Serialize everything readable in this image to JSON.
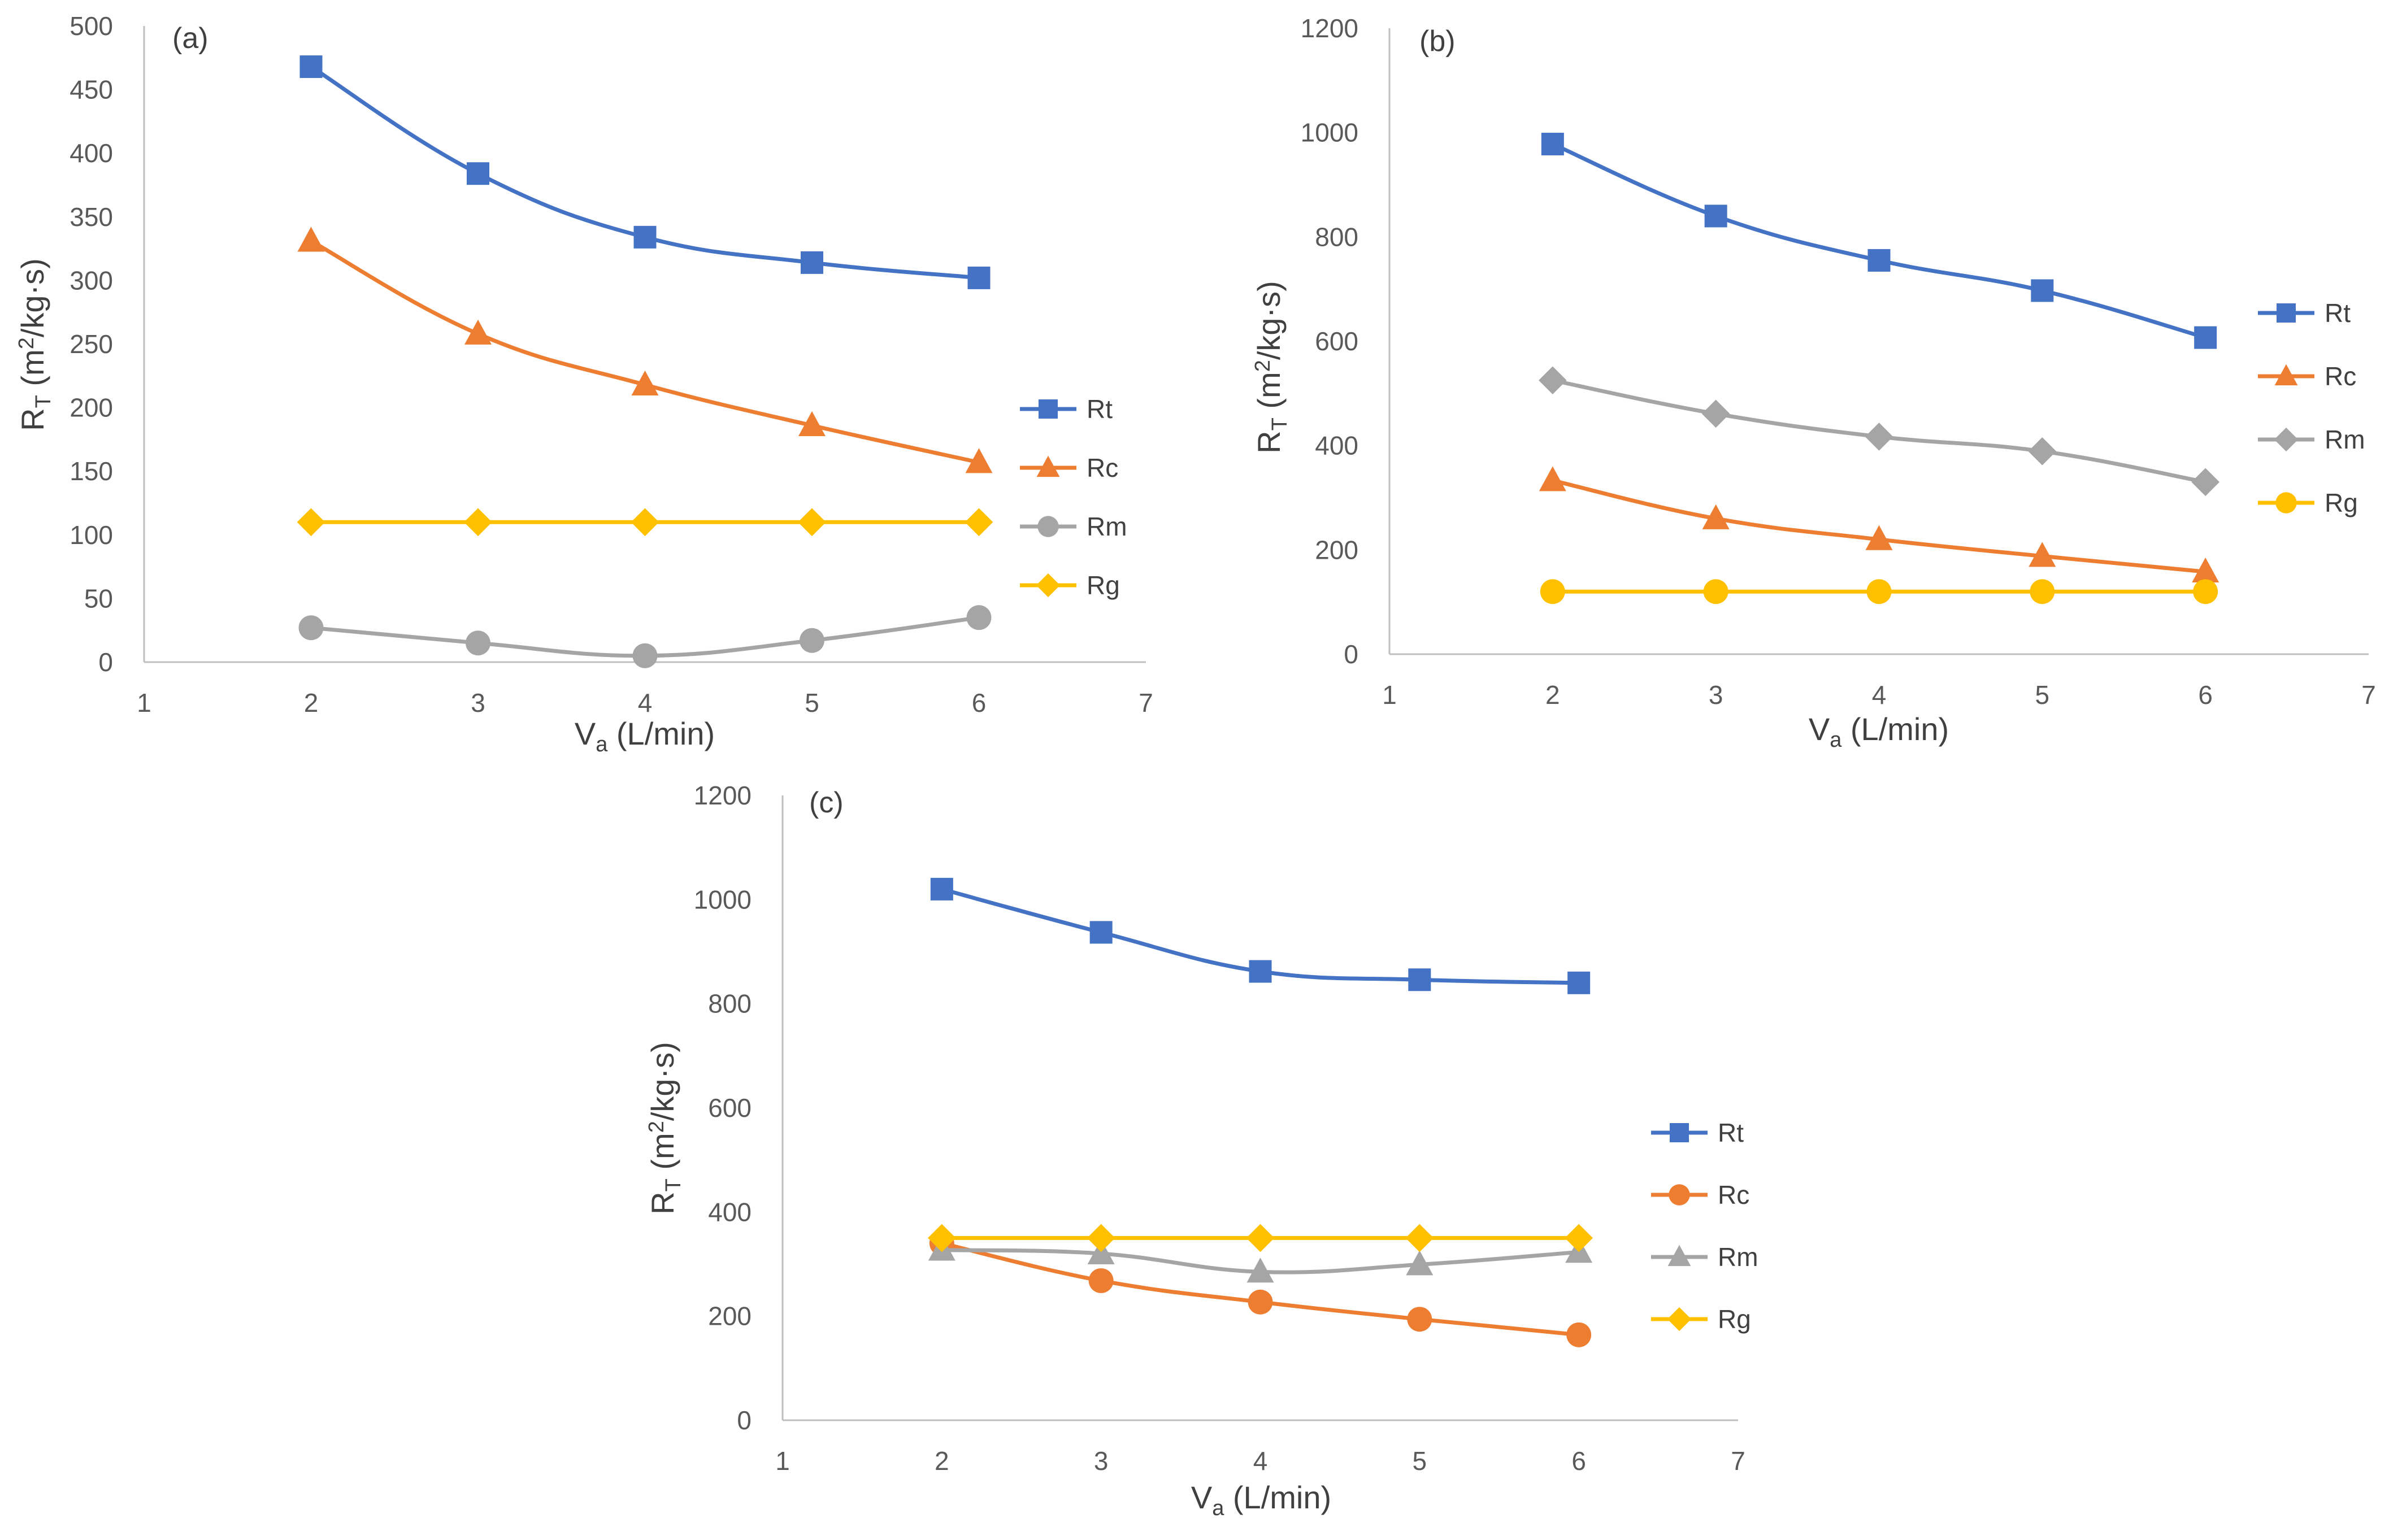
{
  "chart_data": [
    {
      "id": "a",
      "type": "line",
      "panel_label": "(a)",
      "title": "",
      "xlabel": "V",
      "xlabel_sub": "a",
      "xlabel_rest": " (L/min)",
      "ylabel": "R",
      "ylabel_sub": "T",
      "ylabel_rest": " (m",
      "ylabel_sup": "2",
      "ylabel_end": "/kg·s)",
      "xlim": [
        1,
        7
      ],
      "ylim": [
        0,
        500
      ],
      "xticks": [
        "1",
        "2",
        "3",
        "4",
        "5",
        "6",
        "7"
      ],
      "yticks": [
        "0",
        "50",
        "100",
        "150",
        "200",
        "250",
        "300",
        "350",
        "400",
        "450",
        "500"
      ],
      "grid": false,
      "legend_position": "right",
      "x": [
        2,
        3,
        4,
        5,
        6
      ],
      "series": [
        {
          "name": "Rt",
          "marker": "square",
          "color": "#4472c4",
          "values": [
            468,
            384,
            334,
            314,
            302
          ]
        },
        {
          "name": "Rc",
          "marker": "triangle",
          "color": "#ed7d31",
          "values": [
            331,
            258,
            218,
            186,
            157
          ]
        },
        {
          "name": "Rm",
          "marker": "circle",
          "color": "#a5a5a5",
          "values": [
            27,
            15,
            5,
            17,
            35
          ]
        },
        {
          "name": "Rg",
          "marker": "diamond",
          "color": "#ffc000",
          "values": [
            110,
            110,
            110,
            110,
            110
          ]
        }
      ]
    },
    {
      "id": "b",
      "type": "line",
      "panel_label": "(b)",
      "title": "",
      "xlabel": "V",
      "xlabel_sub": "a",
      "xlabel_rest": " (L/min)",
      "ylabel": "R",
      "ylabel_sub": "T",
      "ylabel_rest": " (m",
      "ylabel_sup": "2",
      "ylabel_end": "/kg·s)",
      "xlim": [
        1,
        7
      ],
      "ylim": [
        0,
        1200
      ],
      "xticks": [
        "1",
        "2",
        "3",
        "4",
        "5",
        "6",
        "7"
      ],
      "yticks": [
        "0",
        "200",
        "400",
        "600",
        "800",
        "1000",
        "1200"
      ],
      "grid": false,
      "legend_position": "right",
      "x": [
        2,
        3,
        4,
        5,
        6
      ],
      "series": [
        {
          "name": "Rt",
          "marker": "square",
          "color": "#4472c4",
          "values": [
            978,
            840,
            755,
            697,
            607
          ]
        },
        {
          "name": "Rc",
          "marker": "triangle",
          "color": "#ed7d31",
          "values": [
            333,
            260,
            220,
            188,
            158
          ]
        },
        {
          "name": "Rm",
          "marker": "diamond",
          "color": "#a5a5a5",
          "values": [
            525,
            461,
            417,
            389,
            330
          ]
        },
        {
          "name": "Rg",
          "marker": "circle",
          "color": "#ffc000",
          "values": [
            120,
            120,
            120,
            120,
            120
          ]
        }
      ]
    },
    {
      "id": "c",
      "type": "line",
      "panel_label": "(c)",
      "title": "",
      "xlabel": "V",
      "xlabel_sub": "a",
      "xlabel_rest": " (L/min)",
      "ylabel": "R",
      "ylabel_sub": "T",
      "ylabel_rest": " (m",
      "ylabel_sup": "2",
      "ylabel_end": "/kg·s)",
      "xlim": [
        1,
        7
      ],
      "ylim": [
        0,
        1200
      ],
      "xticks": [
        "1",
        "2",
        "3",
        "4",
        "5",
        "6",
        "7"
      ],
      "yticks": [
        "0",
        "200",
        "400",
        "600",
        "800",
        "1000",
        "1200"
      ],
      "grid": false,
      "legend_position": "right",
      "x": [
        2,
        3,
        4,
        5,
        6
      ],
      "series": [
        {
          "name": "Rt",
          "marker": "square",
          "color": "#4472c4",
          "values": [
            1020,
            937,
            862,
            846,
            840
          ]
        },
        {
          "name": "Rc",
          "marker": "circle",
          "color": "#ed7d31",
          "values": [
            340,
            268,
            227,
            194,
            164
          ]
        },
        {
          "name": "Rm",
          "marker": "triangle",
          "color": "#a5a5a5",
          "values": [
            327,
            320,
            285,
            299,
            323
          ]
        },
        {
          "name": "Rg",
          "marker": "diamond",
          "color": "#ffc000",
          "values": [
            350,
            350,
            350,
            350,
            350
          ]
        }
      ]
    }
  ]
}
